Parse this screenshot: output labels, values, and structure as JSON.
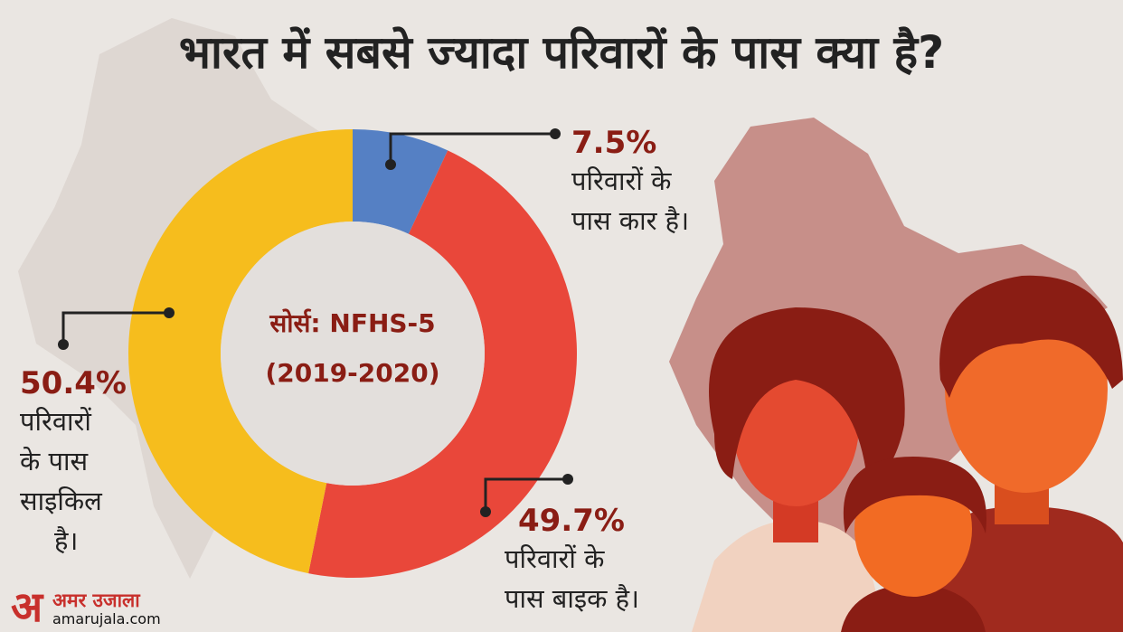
{
  "title": "भारत में सबसे ज्यादा परिवारों के पास क्या है?",
  "center_label": {
    "line1": "सोर्स: NFHS-5",
    "line2": "(2019-2020)"
  },
  "callouts": {
    "car": {
      "value": "7.5%",
      "line1": "परिवारों के",
      "line2": "पास कार है।"
    },
    "bike": {
      "value": "49.7%",
      "line1": "परिवारों के",
      "line2": "पास बाइक है।"
    },
    "cycle": {
      "value": "50.4%",
      "line1": "परिवारों",
      "line2": "के पास",
      "line3": "साइकिल",
      "line4": "है।"
    }
  },
  "logo": {
    "glyph": "अ",
    "name": "अमर उजाला",
    "domain": "amarujala.com"
  },
  "colors": {
    "background": "#eae6e2",
    "title": "#222222",
    "accent": "#8a1d14",
    "car": "#5580c4",
    "bike": "#e9473a",
    "cycle": "#f6bd1d",
    "hole": "#e3dfdc"
  },
  "chart_data": {
    "type": "pie",
    "donut": true,
    "start_angle_deg": 0,
    "slices": [
      {
        "label": "कार",
        "value": 7.5,
        "color": "#5580c4"
      },
      {
        "label": "बाइक",
        "value": 49.7,
        "color": "#e9473a"
      },
      {
        "label": "साइकिल",
        "value": 50.4,
        "color": "#f6bd1d"
      }
    ]
  }
}
